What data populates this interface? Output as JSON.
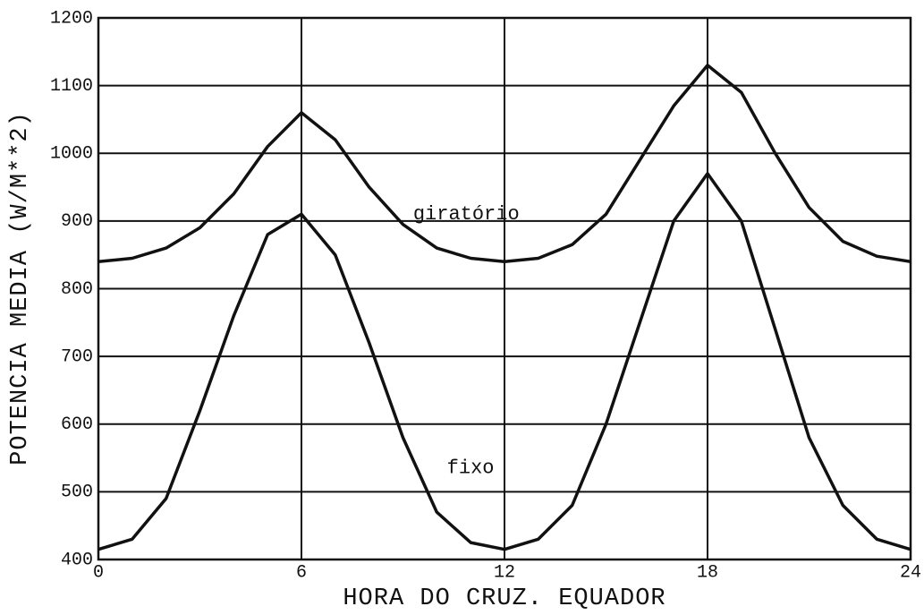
{
  "chart_data": {
    "type": "line",
    "xlabel": "HORA DO CRUZ. EQUADOR",
    "ylabel": "POTENCIA MEDIA (W/M**2)",
    "x": [
      0,
      1,
      2,
      3,
      4,
      5,
      6,
      7,
      8,
      9,
      10,
      11,
      12,
      13,
      14,
      15,
      16,
      17,
      18,
      19,
      20,
      21,
      22,
      23,
      24
    ],
    "series": [
      {
        "name": "giratório",
        "color": "#111111",
        "values": [
          840,
          845,
          860,
          890,
          940,
          1010,
          1060,
          1020,
          950,
          895,
          860,
          845,
          840,
          845,
          865,
          910,
          990,
          1070,
          1130,
          1090,
          1000,
          920,
          870,
          848,
          840
        ]
      },
      {
        "name": "fixo",
        "color": "#111111",
        "values": [
          415,
          430,
          490,
          620,
          760,
          880,
          910,
          850,
          720,
          580,
          470,
          425,
          415,
          430,
          480,
          600,
          750,
          900,
          970,
          900,
          740,
          580,
          480,
          430,
          415
        ]
      }
    ],
    "xlim": [
      0,
      24
    ],
    "xticks": [
      0,
      6,
      12,
      18,
      24
    ],
    "ylim": [
      400,
      1200
    ],
    "yticks": [
      400,
      500,
      600,
      700,
      800,
      900,
      1000,
      1100,
      1200
    ],
    "grid": true
  }
}
